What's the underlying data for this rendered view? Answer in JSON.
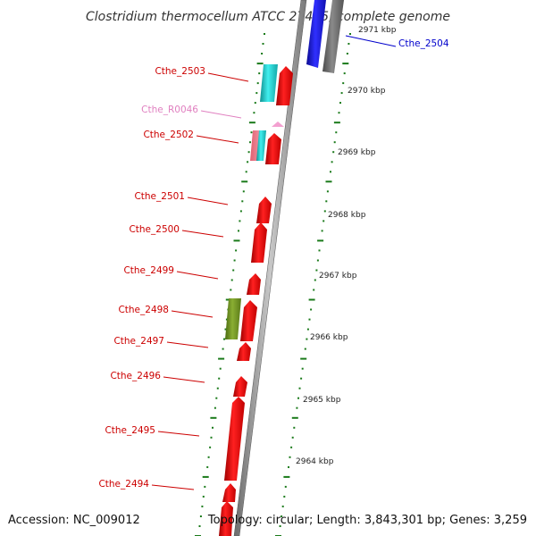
{
  "title": "Clostridium thermocellum ATCC 27405, complete genome",
  "accession": "Accession: NC_009012",
  "topology": "Topology: circular; Length: 3,843,301 bp; Genes: 3,259",
  "colors": {
    "forward": "#ff0000",
    "reverse": "#ff0000",
    "cyan": "#22d4d4",
    "blue": "#1a1ad4",
    "green": "#6b8e23",
    "pink": "#f3a0d0",
    "backbone": "#909090",
    "tick": "#1a7a1a",
    "label_red": "#cc0000",
    "label_blue": "#0000cc",
    "label_pink": "#e080c0"
  },
  "ticks": [
    {
      "label": "2971 kbp"
    },
    {
      "label": "2970 kbp"
    },
    {
      "label": "2969 kbp"
    },
    {
      "label": "2968 kbp"
    },
    {
      "label": "2967 kbp"
    },
    {
      "label": "2966 kbp"
    },
    {
      "label": "2965 kbp"
    },
    {
      "label": "2964 kbp"
    }
  ],
  "genes": [
    {
      "label": "Cthe_2504",
      "color": "blue"
    },
    {
      "label": "Cthe_2503",
      "color": "red"
    },
    {
      "label": "Cthe_R0046",
      "color": "pink"
    },
    {
      "label": "Cthe_2502",
      "color": "red"
    },
    {
      "label": "Cthe_2501",
      "color": "red"
    },
    {
      "label": "Cthe_2500",
      "color": "red"
    },
    {
      "label": "Cthe_2499",
      "color": "red"
    },
    {
      "label": "Cthe_2498",
      "color": "red"
    },
    {
      "label": "Cthe_2497",
      "color": "red"
    },
    {
      "label": "Cthe_2496",
      "color": "red"
    },
    {
      "label": "Cthe_2495",
      "color": "red"
    },
    {
      "label": "Cthe_2494",
      "color": "red"
    }
  ]
}
